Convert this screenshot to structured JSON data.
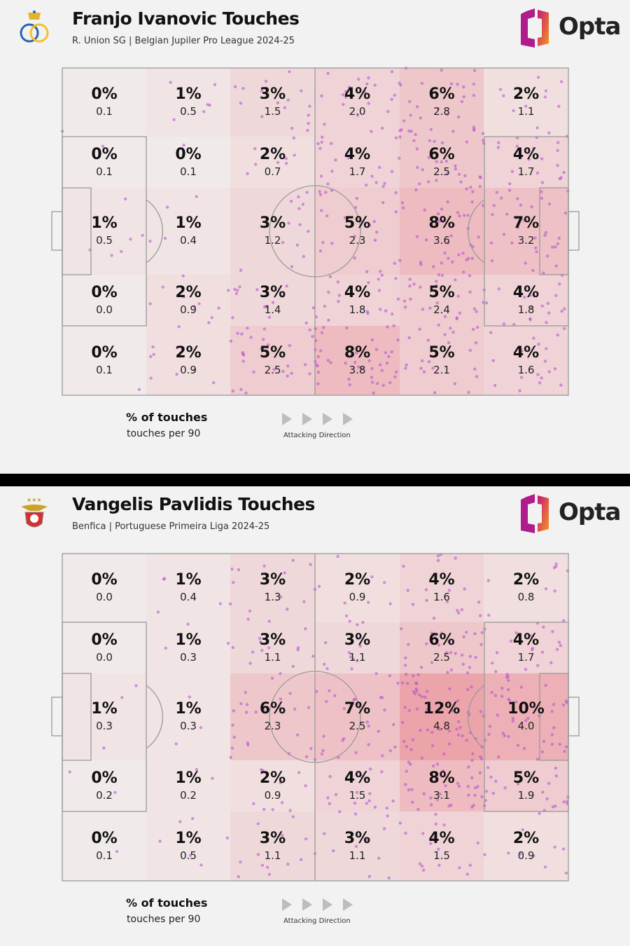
{
  "colors": {
    "heat": "#e8707c",
    "dot": "#b44bd0",
    "line": "#9a9a9a"
  },
  "legend": {
    "pct_label": "% of touches",
    "p90_label": "touches per 90",
    "direction": "Attacking Direction"
  },
  "logo": {
    "text": "Opta"
  },
  "chart_data": [
    {
      "type": "heatmap",
      "title": "Franjo Ivanovic Touches",
      "subtitle": "R. Union SG | Belgian Jupiler Pro League 2024-25",
      "rows": [
        {
          "pct": [
            "0%",
            "1%",
            "3%",
            "4%",
            "6%",
            "2%"
          ],
          "p90": [
            "0.1",
            "0.5",
            "1.5",
            "2.0",
            "2.8",
            "1.1"
          ]
        },
        {
          "pct": [
            "0%",
            "0%",
            "2%",
            "4%",
            "6%",
            "4%"
          ],
          "p90": [
            "0.1",
            "0.1",
            "0.7",
            "1.7",
            "2.5",
            "1.7"
          ]
        },
        {
          "pct": [
            "1%",
            "1%",
            "3%",
            "5%",
            "8%",
            "7%"
          ],
          "p90": [
            "0.5",
            "0.4",
            "1.2",
            "2.3",
            "3.6",
            "3.2"
          ]
        },
        {
          "pct": [
            "0%",
            "2%",
            "3%",
            "4%",
            "5%",
            "4%"
          ],
          "p90": [
            "0.0",
            "0.9",
            "1.4",
            "1.8",
            "2.4",
            "1.8"
          ]
        },
        {
          "pct": [
            "0%",
            "2%",
            "5%",
            "8%",
            "5%",
            "4%"
          ],
          "p90": [
            "0.1",
            "0.9",
            "2.5",
            "3.8",
            "2.1",
            "1.6"
          ]
        }
      ]
    },
    {
      "type": "heatmap",
      "title": "Vangelis Pavlidis Touches",
      "subtitle": "Benfica | Portuguese Primeira Liga 2024-25",
      "rows": [
        {
          "pct": [
            "0%",
            "1%",
            "3%",
            "2%",
            "4%",
            "2%"
          ],
          "p90": [
            "0.0",
            "0.4",
            "1.3",
            "0.9",
            "1.6",
            "0.8"
          ]
        },
        {
          "pct": [
            "0%",
            "1%",
            "3%",
            "3%",
            "6%",
            "4%"
          ],
          "p90": [
            "0.0",
            "0.3",
            "1.1",
            "1.1",
            "2.5",
            "1.7"
          ]
        },
        {
          "pct": [
            "1%",
            "1%",
            "6%",
            "7%",
            "12%",
            "10%"
          ],
          "p90": [
            "0.3",
            "0.3",
            "2.3",
            "2.5",
            "4.8",
            "4.0"
          ]
        },
        {
          "pct": [
            "0%",
            "1%",
            "2%",
            "4%",
            "8%",
            "5%"
          ],
          "p90": [
            "0.2",
            "0.2",
            "0.9",
            "1.5",
            "3.1",
            "1.9"
          ]
        },
        {
          "pct": [
            "0%",
            "1%",
            "3%",
            "3%",
            "4%",
            "2%"
          ],
          "p90": [
            "0.1",
            "0.5",
            "1.1",
            "1.1",
            "1.5",
            "0.9"
          ]
        }
      ]
    }
  ]
}
